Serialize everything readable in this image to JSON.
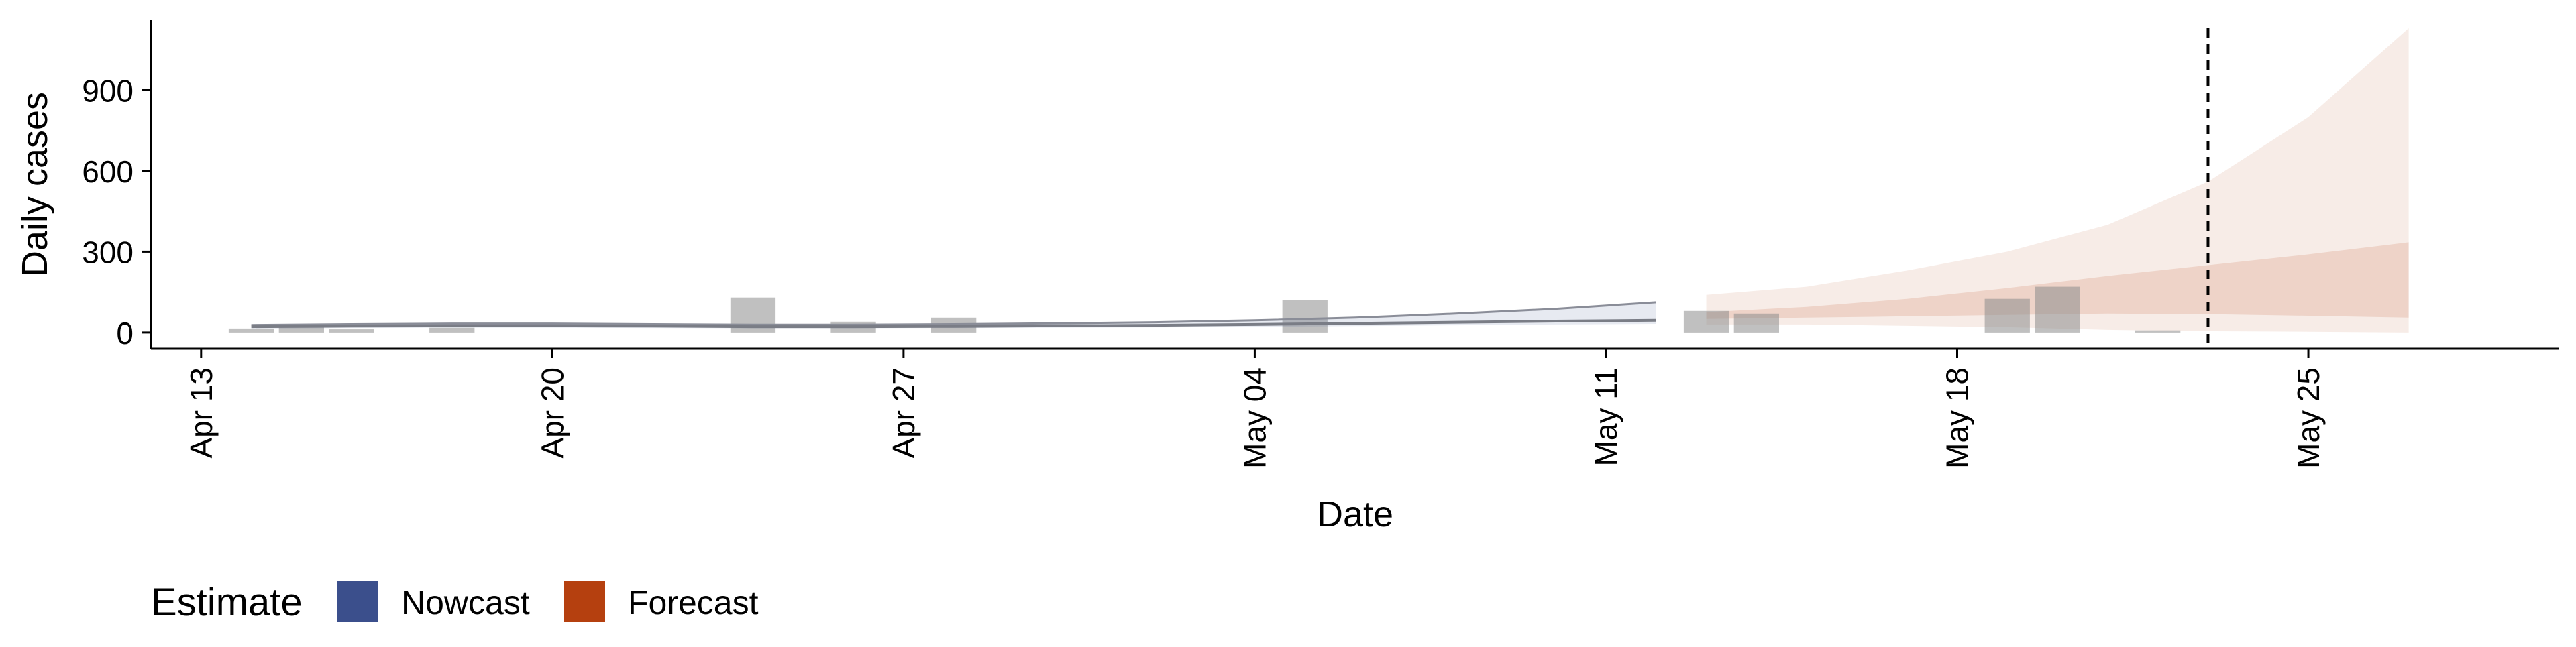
{
  "chart_data": {
    "type": "area",
    "xlabel": "Date",
    "ylabel": "Daily cases",
    "x_axis": {
      "type": "date",
      "range": [
        "2020-04-12",
        "2020-05-30"
      ],
      "ticks": [
        {
          "date": "2020-04-13",
          "label": "Apr 13"
        },
        {
          "date": "2020-04-20",
          "label": "Apr 20"
        },
        {
          "date": "2020-04-27",
          "label": "Apr 27"
        },
        {
          "date": "2020-05-04",
          "label": "May 04"
        },
        {
          "date": "2020-05-11",
          "label": "May 11"
        },
        {
          "date": "2020-05-18",
          "label": "May 18"
        },
        {
          "date": "2020-05-25",
          "label": "May 25"
        }
      ]
    },
    "y_axis": {
      "range": [
        -60,
        1160
      ],
      "ticks": [
        {
          "value": 0,
          "label": "0"
        },
        {
          "value": 300,
          "label": "300"
        },
        {
          "value": 600,
          "label": "600"
        },
        {
          "value": 900,
          "label": "900"
        }
      ]
    },
    "grid": false,
    "colors": {
      "bars": "#8c8c8c",
      "nowcast": "#3b4f8c",
      "forecast": "#b5400f",
      "cutoff_line": "#000000"
    },
    "observed_cases": [
      {
        "date": "2020-04-14",
        "value": 15
      },
      {
        "date": "2020-04-15",
        "value": 20
      },
      {
        "date": "2020-04-16",
        "value": 12
      },
      {
        "date": "2020-04-18",
        "value": 18
      },
      {
        "date": "2020-04-24",
        "value": 130
      },
      {
        "date": "2020-04-26",
        "value": 40
      },
      {
        "date": "2020-04-28",
        "value": 55
      },
      {
        "date": "2020-05-05",
        "value": 120
      },
      {
        "date": "2020-05-13",
        "value": 80
      },
      {
        "date": "2020-05-14",
        "value": 70
      },
      {
        "date": "2020-05-19",
        "value": 125
      },
      {
        "date": "2020-05-20",
        "value": 170
      },
      {
        "date": "2020-05-22",
        "value": 8
      }
    ],
    "nowcast": {
      "name": "Nowcast",
      "dates": [
        "2020-04-14",
        "2020-04-16",
        "2020-04-18",
        "2020-04-20",
        "2020-04-22",
        "2020-04-24",
        "2020-04-26",
        "2020-04-28",
        "2020-04-30",
        "2020-05-02",
        "2020-05-04",
        "2020-05-06",
        "2020-05-08",
        "2020-05-10",
        "2020-05-12"
      ],
      "median": [
        22,
        24,
        25,
        25,
        24,
        22,
        22,
        23,
        25,
        27,
        30,
        34,
        38,
        42,
        45
      ],
      "lower": [
        15,
        17,
        18,
        18,
        17,
        16,
        16,
        17,
        18,
        19,
        21,
        24,
        27,
        30,
        32
      ],
      "upper": [
        28,
        31,
        33,
        33,
        31,
        29,
        29,
        31,
        34,
        38,
        45,
        55,
        70,
        88,
        112
      ]
    },
    "forecast": {
      "name": "Forecast",
      "dates": [
        "2020-05-13",
        "2020-05-15",
        "2020-05-17",
        "2020-05-19",
        "2020-05-21",
        "2020-05-23",
        "2020-05-25",
        "2020-05-27"
      ],
      "lower_90": [
        30,
        30,
        25,
        20,
        10,
        5,
        3,
        0
      ],
      "lower_50": [
        50,
        55,
        60,
        65,
        70,
        68,
        62,
        55
      ],
      "upper_50": [
        75,
        95,
        125,
        165,
        210,
        250,
        290,
        335
      ],
      "upper_90": [
        140,
        170,
        230,
        300,
        400,
        560,
        800,
        1130
      ]
    },
    "cutoff_date": "2020-05-23",
    "legend": {
      "title": "Estimate",
      "position": "bottom-left",
      "entries": [
        {
          "label": "Nowcast",
          "color": "#3b4f8c"
        },
        {
          "label": "Forecast",
          "color": "#b5400f"
        }
      ]
    }
  }
}
